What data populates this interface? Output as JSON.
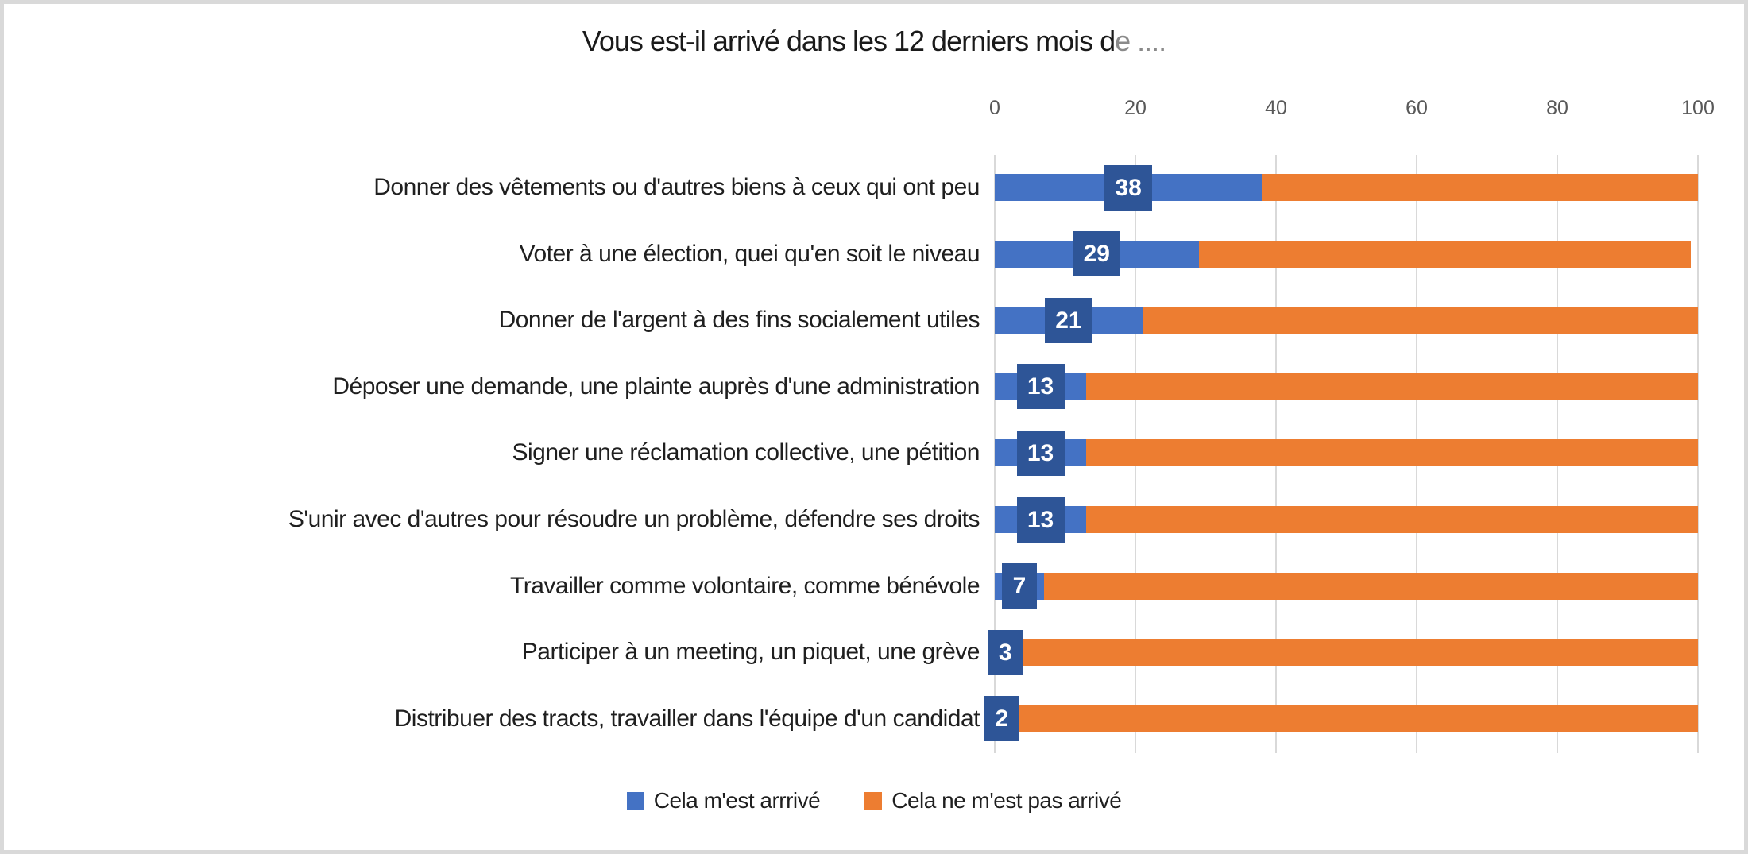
{
  "frame": {
    "background": "#ffffff",
    "border_color": "#d9d9d9"
  },
  "chart_data": {
    "type": "bar",
    "variant": "horizontal-stacked",
    "title": "Vous est-il arrivé dans les 12 derniers mois de ....",
    "title_main": "Vous est-il arrivé dans les 12 derniers mois d",
    "title_faded": "e ....",
    "categories": [
      "Donner des vêtements ou d'autres biens à ceux qui ont peu",
      "Voter à une élection, quei qu'en soit le niveau",
      "Donner de l'argent à des fins socialement utiles",
      "Déposer une demande, une plainte auprès d'une administration",
      "Signer une réclamation collective, une pétition",
      "S'unir avec d'autres pour résoudre un problème, défendre ses droits",
      "Travailler comme volontaire, comme bénévole",
      "Participer à un meeting, un piquet, une grève",
      "Distribuer des tracts, travailler dans l'équipe d'un candidat"
    ],
    "series": [
      {
        "name": "Cela m'est arrrivé",
        "color": "#4472C4",
        "values": [
          38,
          29,
          21,
          13,
          13,
          13,
          7,
          3,
          2
        ]
      },
      {
        "name": "Cela ne m'est pas arrivé",
        "color": "#ED7D31",
        "values": [
          62,
          70,
          79,
          87,
          87,
          87,
          93,
          97,
          98
        ]
      }
    ],
    "data_labels": {
      "series_index": 0,
      "background": "#2E5597",
      "text_color": "#ffffff"
    },
    "x_axis": {
      "position": "top",
      "min": 0,
      "max": 100,
      "ticks": [
        0,
        20,
        40,
        60,
        80,
        100
      ],
      "tick_color": "#595959"
    },
    "grid": {
      "show": true,
      "color": "#d9d9d9"
    },
    "legend": {
      "position": "bottom"
    }
  }
}
